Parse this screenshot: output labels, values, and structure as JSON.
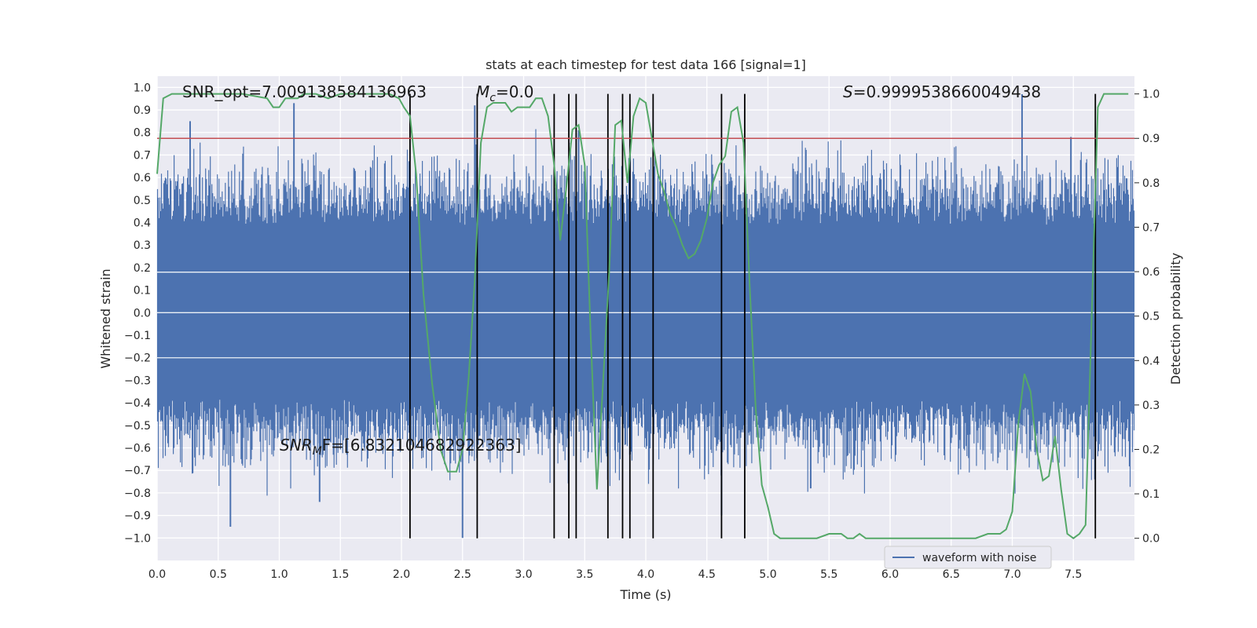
{
  "chart_data": {
    "type": "line",
    "title": "stats at each timestep for test data 166 [signal=1]",
    "xlabel": "Time (s)",
    "ylabel_left": "Whitened strain",
    "ylabel_right": "Detection probability",
    "xlim": [
      0,
      8
    ],
    "ylim_left": [
      -1.1,
      1.05
    ],
    "ylim_right": [
      -0.05,
      1.04
    ],
    "xticks": [
      0.0,
      0.5,
      1.0,
      1.5,
      2.0,
      2.5,
      3.0,
      3.5,
      4.0,
      4.5,
      5.0,
      5.5,
      6.0,
      6.5,
      7.0,
      7.5
    ],
    "xtick_labels": [
      "0.0",
      "0.5",
      "1.0",
      "1.5",
      "2.0",
      "2.5",
      "3.0",
      "3.5",
      "4.0",
      "4.5",
      "5.0",
      "5.5",
      "6.0",
      "6.5",
      "7.0",
      "7.5"
    ],
    "yticks_left": [
      1.0,
      0.9,
      0.8,
      0.7,
      0.6,
      0.5,
      0.4,
      0.3,
      0.2,
      0.1,
      0.0,
      -0.1,
      -0.2,
      -0.3,
      -0.4,
      -0.5,
      -0.6,
      -0.7,
      -0.8,
      -0.9,
      -1.0
    ],
    "ytick_labels_left": [
      "1.0",
      "0.9",
      "0.8",
      "0.7",
      "0.6",
      "0.5",
      "0.4",
      "0.3",
      "0.2",
      "0.1",
      "0.0",
      "−0.1",
      "−0.2",
      "−0.3",
      "−0.4",
      "−0.5",
      "−0.6",
      "−0.7",
      "−0.8",
      "−0.9",
      "−1.0"
    ],
    "yticks_right": [
      1.0,
      0.9,
      0.8,
      0.7,
      0.6,
      0.5,
      0.4,
      0.3,
      0.2,
      0.1,
      0.0
    ],
    "ytick_labels_right": [
      "1.0",
      "0.9",
      "0.8",
      "0.7",
      "0.6",
      "0.5",
      "0.4",
      "0.3",
      "0.2",
      "0.1",
      "0.0"
    ],
    "threshold": 0.9,
    "threshold_color": "#c44e52",
    "waveform_color": "#4c72b0",
    "probability_color": "#55a868",
    "plot_background": "#eaeaf2",
    "grid": true,
    "legend": {
      "label": "waveform with noise",
      "location": "bottom-right"
    },
    "annotations": {
      "snr_opt": "SNR_opt=7.009138584136963",
      "mc_symbol": "M",
      "mc_sub": "c",
      "mc_value": "=0.0",
      "s_symbol": "S",
      "s_value": "=0.9999538660049438",
      "snr_mf_symbol": "SNR",
      "snr_mf_sub": "M",
      "snr_mf_value": "F=[6.832104682922363]"
    },
    "vertical_lines_x": [
      2.07,
      2.62,
      3.25,
      3.37,
      3.43,
      3.69,
      3.81,
      3.87,
      4.06,
      4.62,
      4.81,
      7.68
    ],
    "waveform_envelope": {
      "description_note": "whitened strain noise, approx band",
      "core_amplitude": 0.38,
      "peak_spikes": [
        [
          0.27,
          0.85
        ],
        [
          0.6,
          -0.95
        ],
        [
          1.12,
          0.93
        ],
        [
          1.33,
          -0.84
        ],
        [
          2.5,
          -1.0
        ],
        [
          2.6,
          0.92
        ],
        [
          3.45,
          0.81
        ],
        [
          4.62,
          -0.9
        ],
        [
          5.35,
          -0.78
        ],
        [
          7.08,
          0.97
        ],
        [
          7.48,
          0.78
        ]
      ]
    },
    "series": [
      {
        "name": "detection probability",
        "axis": "right",
        "x": [
          0.0,
          0.05,
          0.12,
          0.2,
          0.3,
          0.5,
          0.7,
          0.9,
          0.95,
          1.0,
          1.05,
          1.1,
          1.15,
          1.2,
          1.3,
          1.4,
          1.5,
          1.6,
          1.7,
          1.8,
          1.9,
          1.98,
          2.02,
          2.07,
          2.12,
          2.18,
          2.25,
          2.32,
          2.38,
          2.45,
          2.5,
          2.55,
          2.6,
          2.65,
          2.7,
          2.75,
          2.8,
          2.85,
          2.9,
          2.95,
          3.0,
          3.05,
          3.1,
          3.15,
          3.2,
          3.25,
          3.3,
          3.35,
          3.4,
          3.45,
          3.5,
          3.55,
          3.6,
          3.65,
          3.7,
          3.75,
          3.8,
          3.85,
          3.9,
          3.95,
          4.0,
          4.05,
          4.1,
          4.15,
          4.2,
          4.25,
          4.3,
          4.35,
          4.4,
          4.45,
          4.5,
          4.55,
          4.6,
          4.65,
          4.7,
          4.75,
          4.8,
          4.85,
          4.9,
          4.95,
          5.0,
          5.05,
          5.1,
          5.2,
          5.3,
          5.4,
          5.5,
          5.6,
          5.65,
          5.7,
          5.75,
          5.8,
          5.9,
          6.0,
          6.1,
          6.2,
          6.3,
          6.5,
          6.7,
          6.8,
          6.9,
          6.95,
          7.0,
          7.05,
          7.1,
          7.15,
          7.2,
          7.25,
          7.3,
          7.35,
          7.4,
          7.45,
          7.5,
          7.55,
          7.6,
          7.65,
          7.7,
          7.75,
          7.8,
          7.85,
          7.9,
          7.95
        ],
        "y": [
          0.82,
          0.99,
          1.0,
          1.0,
          1.0,
          1.0,
          1.0,
          0.99,
          0.97,
          0.97,
          0.99,
          0.99,
          0.99,
          1.0,
          1.0,
          0.99,
          1.0,
          1.0,
          1.0,
          1.0,
          1.0,
          0.99,
          0.97,
          0.95,
          0.82,
          0.55,
          0.35,
          0.2,
          0.15,
          0.15,
          0.2,
          0.36,
          0.58,
          0.89,
          0.97,
          0.98,
          0.98,
          0.98,
          0.96,
          0.97,
          0.97,
          0.97,
          0.99,
          0.99,
          0.95,
          0.84,
          0.67,
          0.79,
          0.92,
          0.93,
          0.84,
          0.45,
          0.11,
          0.35,
          0.6,
          0.93,
          0.94,
          0.8,
          0.95,
          0.99,
          0.98,
          0.9,
          0.82,
          0.78,
          0.73,
          0.7,
          0.66,
          0.63,
          0.64,
          0.67,
          0.72,
          0.8,
          0.84,
          0.86,
          0.96,
          0.97,
          0.89,
          0.57,
          0.29,
          0.12,
          0.07,
          0.01,
          0.0,
          0.0,
          0.0,
          0.0,
          0.01,
          0.01,
          0.0,
          0.0,
          0.01,
          0.0,
          0.0,
          0.0,
          0.0,
          0.0,
          0.0,
          0.0,
          0.0,
          0.01,
          0.01,
          0.02,
          0.06,
          0.26,
          0.37,
          0.33,
          0.2,
          0.13,
          0.14,
          0.23,
          0.11,
          0.01,
          0.0,
          0.01,
          0.03,
          0.5,
          0.97,
          1.0,
          1.0,
          1.0,
          1.0,
          1.0
        ]
      }
    ]
  }
}
